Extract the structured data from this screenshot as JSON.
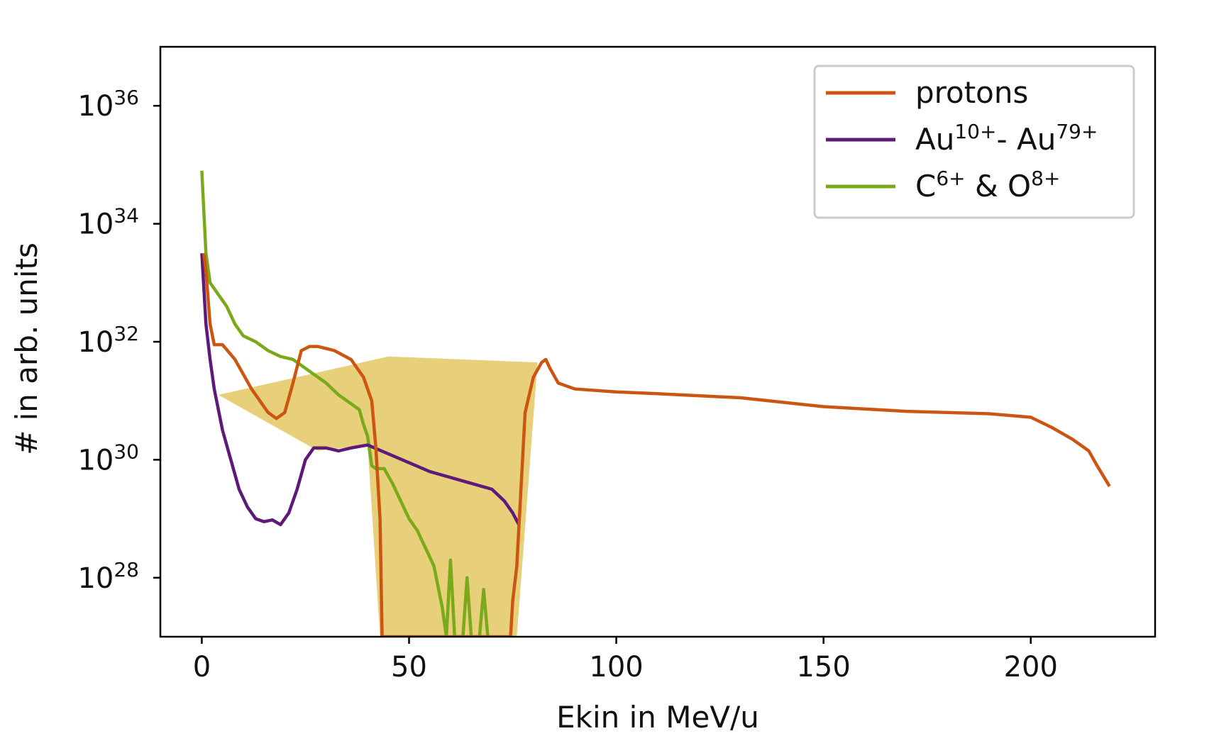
{
  "chart_data": {
    "type": "line",
    "xlabel": "Ekin in MeV/u",
    "ylabel": "# in arb. units",
    "xlim": [
      -10,
      230
    ],
    "ylim_log10": [
      27,
      37
    ],
    "y_scale": "log",
    "x_ticks": [
      "0",
      "50",
      "100",
      "150",
      "200"
    ],
    "x_tick_values": [
      0,
      50,
      100,
      150,
      200
    ],
    "y_ticks": [
      {
        "base": "10",
        "exp": "28",
        "value": 28
      },
      {
        "base": "10",
        "exp": "30",
        "value": 30
      },
      {
        "base": "10",
        "exp": "32",
        "value": 32
      },
      {
        "base": "10",
        "exp": "34",
        "value": 34
      },
      {
        "base": "10",
        "exp": "36",
        "value": 36
      }
    ],
    "legend_position": "top-right",
    "grid": false,
    "legend": [
      {
        "series": "protons",
        "parts": [
          {
            "t": "protons"
          }
        ]
      },
      {
        "series": "gold",
        "parts": [
          {
            "t": "Au"
          },
          {
            "t": "10+",
            "sup": true
          },
          {
            "t": "- Au"
          },
          {
            "t": "79+",
            "sup": true
          }
        ]
      },
      {
        "series": "light",
        "parts": [
          {
            "t": "C"
          },
          {
            "t": "6+",
            "sup": true
          },
          {
            "t": " & O"
          },
          {
            "t": "8+",
            "sup": true
          }
        ]
      }
    ],
    "shaded_region": {
      "color": "#e8d07a",
      "points_log10": [
        [
          4,
          31.1
        ],
        [
          45,
          31.75
        ],
        [
          81,
          31.65
        ],
        [
          76,
          27
        ],
        [
          43,
          27
        ],
        [
          40,
          30.25
        ],
        [
          28,
          30.15
        ]
      ]
    },
    "series": [
      {
        "key": "protons",
        "color": "#cc5511",
        "points_log10": [
          [
            0.5,
            33.5
          ],
          [
            1,
            33.2
          ],
          [
            2,
            32.3
          ],
          [
            3,
            31.95
          ],
          [
            5,
            31.95
          ],
          [
            8,
            31.7
          ],
          [
            12,
            31.2
          ],
          [
            16,
            30.8
          ],
          [
            18,
            30.7
          ],
          [
            20,
            30.8
          ],
          [
            22,
            31.3
          ],
          [
            24,
            31.85
          ],
          [
            26,
            31.92
          ],
          [
            28,
            31.92
          ],
          [
            32,
            31.85
          ],
          [
            36,
            31.7
          ],
          [
            39,
            31.4
          ],
          [
            41,
            31.0
          ],
          [
            42,
            30.2
          ],
          [
            43,
            29.0
          ],
          [
            43.5,
            27.0
          ],
          [
            74.5,
            27.0
          ],
          [
            75,
            27.6
          ],
          [
            76,
            28.2
          ],
          [
            78,
            30.8
          ],
          [
            80,
            31.4
          ],
          [
            82,
            31.65
          ],
          [
            83,
            31.7
          ],
          [
            84,
            31.55
          ],
          [
            86,
            31.3
          ],
          [
            90,
            31.2
          ],
          [
            100,
            31.15
          ],
          [
            110,
            31.12
          ],
          [
            130,
            31.05
          ],
          [
            150,
            30.9
          ],
          [
            170,
            30.82
          ],
          [
            190,
            30.78
          ],
          [
            200,
            30.72
          ],
          [
            205,
            30.55
          ],
          [
            210,
            30.35
          ],
          [
            214,
            30.15
          ],
          [
            216,
            29.9
          ],
          [
            219,
            29.55
          ]
        ]
      },
      {
        "key": "gold",
        "color": "#5e1a78",
        "points_log10": [
          [
            0,
            33.5
          ],
          [
            1,
            32.3
          ],
          [
            2,
            31.7
          ],
          [
            3,
            31.2
          ],
          [
            5,
            30.5
          ],
          [
            7,
            30.0
          ],
          [
            9,
            29.5
          ],
          [
            11,
            29.2
          ],
          [
            13,
            29.0
          ],
          [
            15,
            28.95
          ],
          [
            17,
            28.98
          ],
          [
            19,
            28.9
          ],
          [
            21,
            29.1
          ],
          [
            23,
            29.5
          ],
          [
            25,
            30.0
          ],
          [
            27,
            30.2
          ],
          [
            30,
            30.2
          ],
          [
            33,
            30.15
          ],
          [
            36,
            30.2
          ],
          [
            40,
            30.25
          ],
          [
            45,
            30.1
          ],
          [
            50,
            29.95
          ],
          [
            55,
            29.8
          ],
          [
            60,
            29.7
          ],
          [
            65,
            29.6
          ],
          [
            70,
            29.5
          ],
          [
            73,
            29.3
          ],
          [
            75,
            29.1
          ],
          [
            76.5,
            28.9
          ]
        ]
      },
      {
        "key": "light",
        "color": "#7aaa1a",
        "points_log10": [
          [
            0,
            34.9
          ],
          [
            1,
            33.5
          ],
          [
            2,
            33.0
          ],
          [
            4,
            32.8
          ],
          [
            6,
            32.6
          ],
          [
            8,
            32.3
          ],
          [
            10,
            32.1
          ],
          [
            13,
            32.0
          ],
          [
            16,
            31.85
          ],
          [
            19,
            31.75
          ],
          [
            22,
            31.7
          ],
          [
            25,
            31.55
          ],
          [
            28,
            31.4
          ],
          [
            30,
            31.3
          ],
          [
            33,
            31.1
          ],
          [
            36,
            30.95
          ],
          [
            38,
            30.85
          ],
          [
            39,
            30.6
          ],
          [
            40,
            30.4
          ],
          [
            41,
            29.9
          ],
          [
            42,
            29.85
          ],
          [
            44,
            29.85
          ],
          [
            46,
            29.6
          ],
          [
            48,
            29.3
          ],
          [
            50,
            29.0
          ],
          [
            52,
            28.8
          ],
          [
            54,
            28.5
          ],
          [
            56,
            28.2
          ],
          [
            58,
            27.5
          ],
          [
            59,
            27.0
          ],
          [
            60,
            28.3
          ],
          [
            61,
            27.0
          ],
          [
            63,
            27.0
          ],
          [
            64,
            28.0
          ],
          [
            65,
            27.0
          ],
          [
            67,
            27.0
          ],
          [
            68,
            27.8
          ],
          [
            69,
            27.0
          ]
        ]
      }
    ]
  }
}
